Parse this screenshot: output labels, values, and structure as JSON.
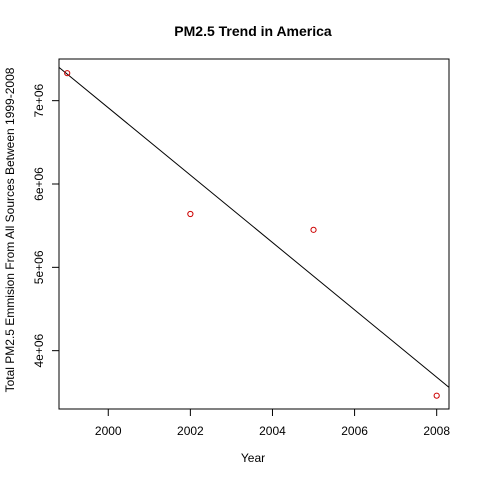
{
  "chart_data": {
    "type": "scatter",
    "title": "PM2.5 Trend in America",
    "xlabel": "Year",
    "ylabel": "Total PM2.5 Emmision From All Sources Between 1999-2008",
    "xlim": [
      1998.8,
      2008.3
    ],
    "ylim": [
      3300000,
      7500000
    ],
    "x_ticks": [
      2000,
      2002,
      2004,
      2006,
      2008
    ],
    "x_tick_labels": [
      "2000",
      "2002",
      "2004",
      "2006",
      "2008"
    ],
    "y_ticks": [
      4000000,
      5000000,
      6000000,
      7000000
    ],
    "y_tick_labels": [
      "4e+06",
      "5e+06",
      "6e+06",
      "7e+06"
    ],
    "series": [
      {
        "x": [
          1999,
          2002,
          2005,
          2008
        ],
        "y": [
          7330000,
          5640000,
          5450000,
          3460000
        ],
        "color": "#cc0000"
      }
    ],
    "trend_line": {
      "x": [
        1998.8,
        2008.3
      ],
      "y": [
        7400000,
        3560000
      ],
      "color": "#000000"
    },
    "grid": false,
    "legend": "none"
  }
}
